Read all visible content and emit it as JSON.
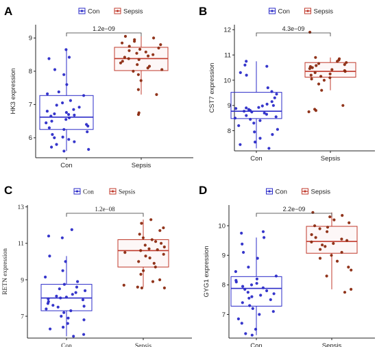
{
  "chart_data": [
    {
      "type": "box",
      "panel": "A",
      "ylabel": "HK3 expression",
      "categories": [
        "Con",
        "Sepsis"
      ],
      "legend": [
        "Con",
        "Sepsis"
      ],
      "ylim": [
        5.4,
        9.4
      ],
      "yticks": [
        6,
        7,
        8,
        9
      ],
      "pvalue": "1.2e−09",
      "colors": {
        "Con": "#2b2bc8",
        "Sepsis": "#c0392b",
        "Sepsis_point": "#8b2a10"
      },
      "boxes": [
        {
          "group": "Con",
          "min": 5.6,
          "q1": 6.25,
          "median": 6.62,
          "q3": 7.27,
          "max": 8.65
        },
        {
          "group": "Sepsis",
          "min": 7.3,
          "q1": 8.02,
          "median": 8.38,
          "q3": 8.72,
          "max": 9.05
        }
      ],
      "points": {
        "Con": [
          8.65,
          8.42,
          8.38,
          8.05,
          7.9,
          7.6,
          7.32,
          7.27,
          7.12,
          7.05,
          6.98,
          6.92,
          6.85,
          6.8,
          6.76,
          6.72,
          6.68,
          6.65,
          6.6,
          6.55,
          6.5,
          6.45,
          6.4,
          6.35,
          6.3,
          6.25,
          6.18,
          6.1,
          6.02,
          5.95,
          5.88,
          5.8,
          5.72,
          5.65,
          5.6,
          6.0,
          6.7,
          7.38
        ],
        "Sepsis": [
          9.05,
          9.0,
          8.95,
          8.9,
          8.85,
          8.8,
          8.75,
          8.7,
          8.66,
          8.62,
          8.58,
          8.54,
          8.5,
          8.46,
          8.42,
          8.38,
          8.35,
          8.3,
          8.25,
          8.2,
          8.15,
          8.1,
          8.05,
          8.0,
          7.9,
          7.72,
          7.45,
          7.3,
          6.75,
          6.7
        ]
      }
    },
    {
      "type": "box",
      "panel": "B",
      "ylabel": "CST7 expression",
      "categories": [
        "Con",
        "Sepsis"
      ],
      "legend": [
        "Con",
        "Sepsis"
      ],
      "ylim": [
        7.2,
        12.2
      ],
      "yticks": [
        8,
        9,
        10,
        11,
        12
      ],
      "pvalue": "4.3e−09",
      "colors": {
        "Con": "#2b2bc8",
        "Sepsis": "#c0392b",
        "Sepsis_point": "#8b2a10"
      },
      "boxes": [
        {
          "group": "Con",
          "min": 7.3,
          "q1": 8.48,
          "median": 8.77,
          "q3": 9.52,
          "max": 10.75
        },
        {
          "group": "Sepsis",
          "min": 9.6,
          "q1": 10.12,
          "median": 10.35,
          "q3": 10.7,
          "max": 10.9
        }
      ],
      "points": {
        "Con": [
          10.75,
          10.6,
          10.55,
          10.3,
          10.2,
          9.7,
          9.55,
          9.45,
          9.3,
          9.15,
          9.05,
          8.98,
          8.92,
          8.88,
          8.84,
          8.8,
          8.77,
          8.74,
          8.7,
          8.65,
          8.6,
          8.55,
          8.5,
          8.45,
          8.4,
          8.3,
          8.2,
          8.05,
          7.95,
          7.85,
          7.7,
          7.55,
          7.45,
          7.3,
          9.0,
          8.9
        ],
        "Sepsis": [
          11.9,
          10.9,
          10.85,
          10.8,
          10.75,
          10.7,
          10.66,
          10.62,
          10.58,
          10.54,
          10.5,
          10.46,
          10.42,
          10.38,
          10.35,
          10.3,
          10.25,
          10.2,
          10.15,
          10.1,
          10.05,
          10.0,
          9.85,
          9.6,
          9.0,
          8.85,
          8.8,
          8.75
        ]
      }
    },
    {
      "type": "box",
      "panel": "C",
      "ylabel": "RETN expression",
      "categories": [
        "Con",
        "Sepsis"
      ],
      "legend": [
        "Con",
        "Sepsis"
      ],
      "ylim": [
        5.8,
        13.1
      ],
      "yticks": [
        7,
        9,
        11,
        13
      ],
      "pvalue": "1.2e−08",
      "serif": true,
      "colors": {
        "Con": "#2b2bc8",
        "Sepsis": "#c0392b",
        "Sepsis_point": "#8b2a10"
      },
      "boxes": [
        {
          "group": "Con",
          "min": 5.9,
          "q1": 7.3,
          "median": 8.0,
          "q3": 8.75,
          "max": 10.3
        },
        {
          "group": "Sepsis",
          "min": 8.6,
          "q1": 9.7,
          "median": 10.6,
          "q3": 11.2,
          "max": 12.3
        }
      ],
      "points": {
        "Con": [
          11.75,
          11.4,
          11.3,
          10.3,
          10.0,
          9.5,
          9.15,
          8.9,
          8.75,
          8.6,
          8.5,
          8.4,
          8.3,
          8.2,
          8.1,
          8.0,
          7.95,
          7.9,
          7.8,
          7.7,
          7.6,
          7.5,
          7.4,
          7.3,
          7.2,
          7.0,
          6.9,
          6.8,
          6.6,
          6.4,
          6.3,
          6.0,
          5.9,
          8.05,
          7.55
        ],
        "Sepsis": [
          12.3,
          12.1,
          11.85,
          11.7,
          11.5,
          11.3,
          11.2,
          11.1,
          11.0,
          10.9,
          10.8,
          10.7,
          10.65,
          10.6,
          10.5,
          10.4,
          10.3,
          10.2,
          10.0,
          9.9,
          9.7,
          9.5,
          9.3,
          9.0,
          8.9,
          8.7,
          8.6,
          8.55,
          8.55
        ]
      }
    },
    {
      "type": "box",
      "panel": "D",
      "ylabel": "GYG1 expression",
      "categories": [
        "Con",
        "Sepsis"
      ],
      "legend": [
        "Con",
        "Sepsis"
      ],
      "ylim": [
        6.2,
        10.7
      ],
      "yticks": [
        7,
        8,
        9,
        10
      ],
      "pvalue": "2.2e−09",
      "colors": {
        "Con": "#2b2bc8",
        "Sepsis": "#c0392b",
        "Sepsis_point": "#8b2a10"
      },
      "boxes": [
        {
          "group": "Con",
          "min": 6.3,
          "q1": 7.28,
          "median": 7.88,
          "q3": 8.28,
          "max": 9.6
        },
        {
          "group": "Sepsis",
          "min": 7.85,
          "q1": 9.07,
          "median": 9.47,
          "q3": 9.98,
          "max": 10.45
        }
      ],
      "points": {
        "Con": [
          9.8,
          9.75,
          9.6,
          9.38,
          9.1,
          8.9,
          8.6,
          8.45,
          8.3,
          8.2,
          8.1,
          8.0,
          7.95,
          7.9,
          7.85,
          7.8,
          7.75,
          7.7,
          7.65,
          7.6,
          7.5,
          7.4,
          7.3,
          7.2,
          7.1,
          7.0,
          6.85,
          6.7,
          6.5,
          6.35,
          6.3,
          8.05,
          7.55,
          8.15
        ],
        "Sepsis": [
          10.45,
          10.35,
          10.3,
          10.2,
          10.1,
          10.0,
          9.95,
          9.9,
          9.8,
          9.7,
          9.6,
          9.55,
          9.5,
          9.45,
          9.4,
          9.35,
          9.3,
          9.2,
          9.1,
          9.0,
          8.9,
          8.8,
          8.6,
          8.5,
          8.3,
          7.85,
          7.75
        ]
      }
    }
  ]
}
